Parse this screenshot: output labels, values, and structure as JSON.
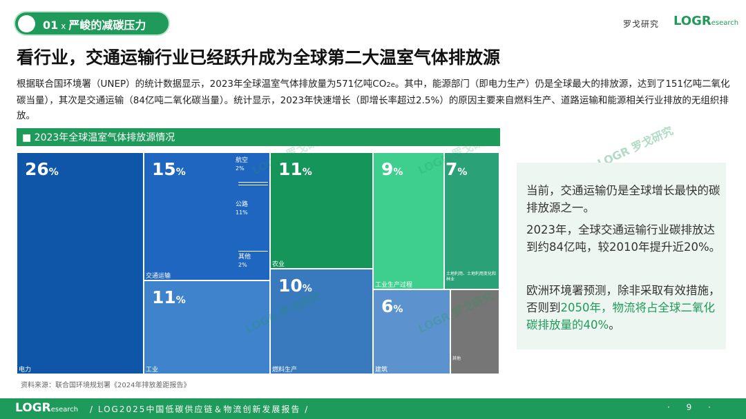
{
  "header": {
    "section_num": "01",
    "section_sep": "x",
    "section_title": "严峻的减碳压力",
    "brand_cn": "罗戈研究",
    "brand_logo_main": "LOGR",
    "brand_logo_sub": "esearch"
  },
  "title": "看行业，交通运输行业已经跃升成为全球第二大温室气体排放源",
  "description": {
    "part1": "根据联合国环境署（UNEP）的统计数据显示，2023年全球温室气体排放量为571亿吨CO",
    "sub": "2e",
    "part2": "。其中，能源部门（即电力生产）仍是全球最大的排放源，达到了151亿吨二氧化碳当量），其次是交通运输（84亿吨二氧化碳当量）。统计显示，2023年快速增长（即增长率超过2.5%）的原因主要来自燃料生产、道路运输和能源相关行业排放的无组织排放。"
  },
  "chart_data": {
    "type": "treemap",
    "title": "■ 2023年全球温室气体排放源情况",
    "unit": "%",
    "items": [
      {
        "id": "power",
        "label": "电力",
        "value": 26,
        "color": "#0f56a8"
      },
      {
        "id": "transport",
        "label": "交通运输",
        "value": 15,
        "color": "#1f66c0",
        "children": [
          {
            "label": "航空",
            "value": 2
          },
          {
            "label": "公路",
            "value": 11
          },
          {
            "label": "其他",
            "value": 2
          }
        ]
      },
      {
        "id": "industry",
        "label": "工业",
        "value": 11,
        "color": "#3f83cc"
      },
      {
        "id": "agriculture",
        "label": "农业",
        "value": 11,
        "color": "#16955b"
      },
      {
        "id": "fuel",
        "label": "燃料生产",
        "value": 10,
        "color": "#3979bd"
      },
      {
        "id": "process",
        "label": "工业生产过程",
        "value": 9,
        "color": "#3ecf8e"
      },
      {
        "id": "lulucf",
        "label": "土地利用、土地利用变化和林业",
        "value": 7,
        "color": "#2ba177"
      },
      {
        "id": "building",
        "label": "建筑",
        "value": 6,
        "color": "#5c93cf"
      },
      {
        "id": "other",
        "label": "其他",
        "value": 5,
        "color": "#767676"
      }
    ]
  },
  "source": "资料来源：联合国环境规划署《2024年排放差距报告》",
  "panel": {
    "p1": "当前，交通运输仍是全球增长最快的碳排放源之一。",
    "p2": "2023年，全球交通运输行业碳排放达到约84亿吨，较2010年提升近20%。",
    "p3_a": "欧洲环境署预测，除非采取有效措施，否则到",
    "p3_b": "2050年，物流将占全球二氧化碳排放量的40%",
    "p3_c": "。"
  },
  "watermark": "LOGR 罗戈研究",
  "footer": {
    "logo_main": "LOGR",
    "logo_sub": "esearch",
    "text": "/  LOG2025中国低碳供应链＆物流创新发展报告  /",
    "page": "· 9 ·"
  }
}
